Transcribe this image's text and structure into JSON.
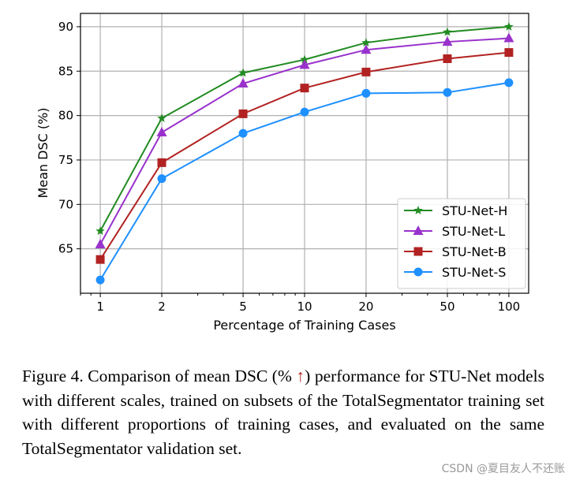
{
  "chart_data": {
    "type": "line",
    "xlabel": "Percentage of Training Cases",
    "ylabel": "Mean DSC (%)",
    "x": [
      1,
      2,
      5,
      10,
      20,
      50,
      100
    ],
    "x_tick_labels": [
      "1",
      "2",
      "5",
      "10",
      "20",
      "50",
      "100"
    ],
    "x_scale": "log",
    "xlim": [
      0.8,
      125
    ],
    "y_ticks": [
      65,
      70,
      75,
      80,
      85,
      90
    ],
    "ylim": [
      60,
      91.5
    ],
    "grid": true,
    "legend_placement": "lower-right",
    "series": [
      {
        "name": "STU-Net-H",
        "color": "#228b22",
        "marker": "star",
        "values": [
          67.0,
          79.7,
          84.8,
          86.3,
          88.2,
          89.4,
          90.0
        ]
      },
      {
        "name": "STU-Net-L",
        "color": "#9932cc",
        "marker": "triangle",
        "values": [
          65.5,
          78.1,
          83.6,
          85.7,
          87.4,
          88.3,
          88.7
        ]
      },
      {
        "name": "STU-Net-B",
        "color": "#b22222",
        "marker": "square",
        "values": [
          63.8,
          74.7,
          80.2,
          83.1,
          84.9,
          86.4,
          87.1
        ]
      },
      {
        "name": "STU-Net-S",
        "color": "#1e90ff",
        "marker": "circle",
        "values": [
          61.5,
          72.9,
          78.0,
          80.4,
          82.5,
          82.6,
          83.7
        ]
      }
    ]
  },
  "caption": {
    "before": "Figure 4. Comparison of mean DSC (% ",
    "arrow": "↑",
    "after": ") performance for STU-Net models with different scales, trained on subsets of the TotalSegmentator training set with different proportions of training cases, and evaluated on the same TotalSegmentator validation set."
  },
  "watermark": "CSDN @夏目友人不还账"
}
